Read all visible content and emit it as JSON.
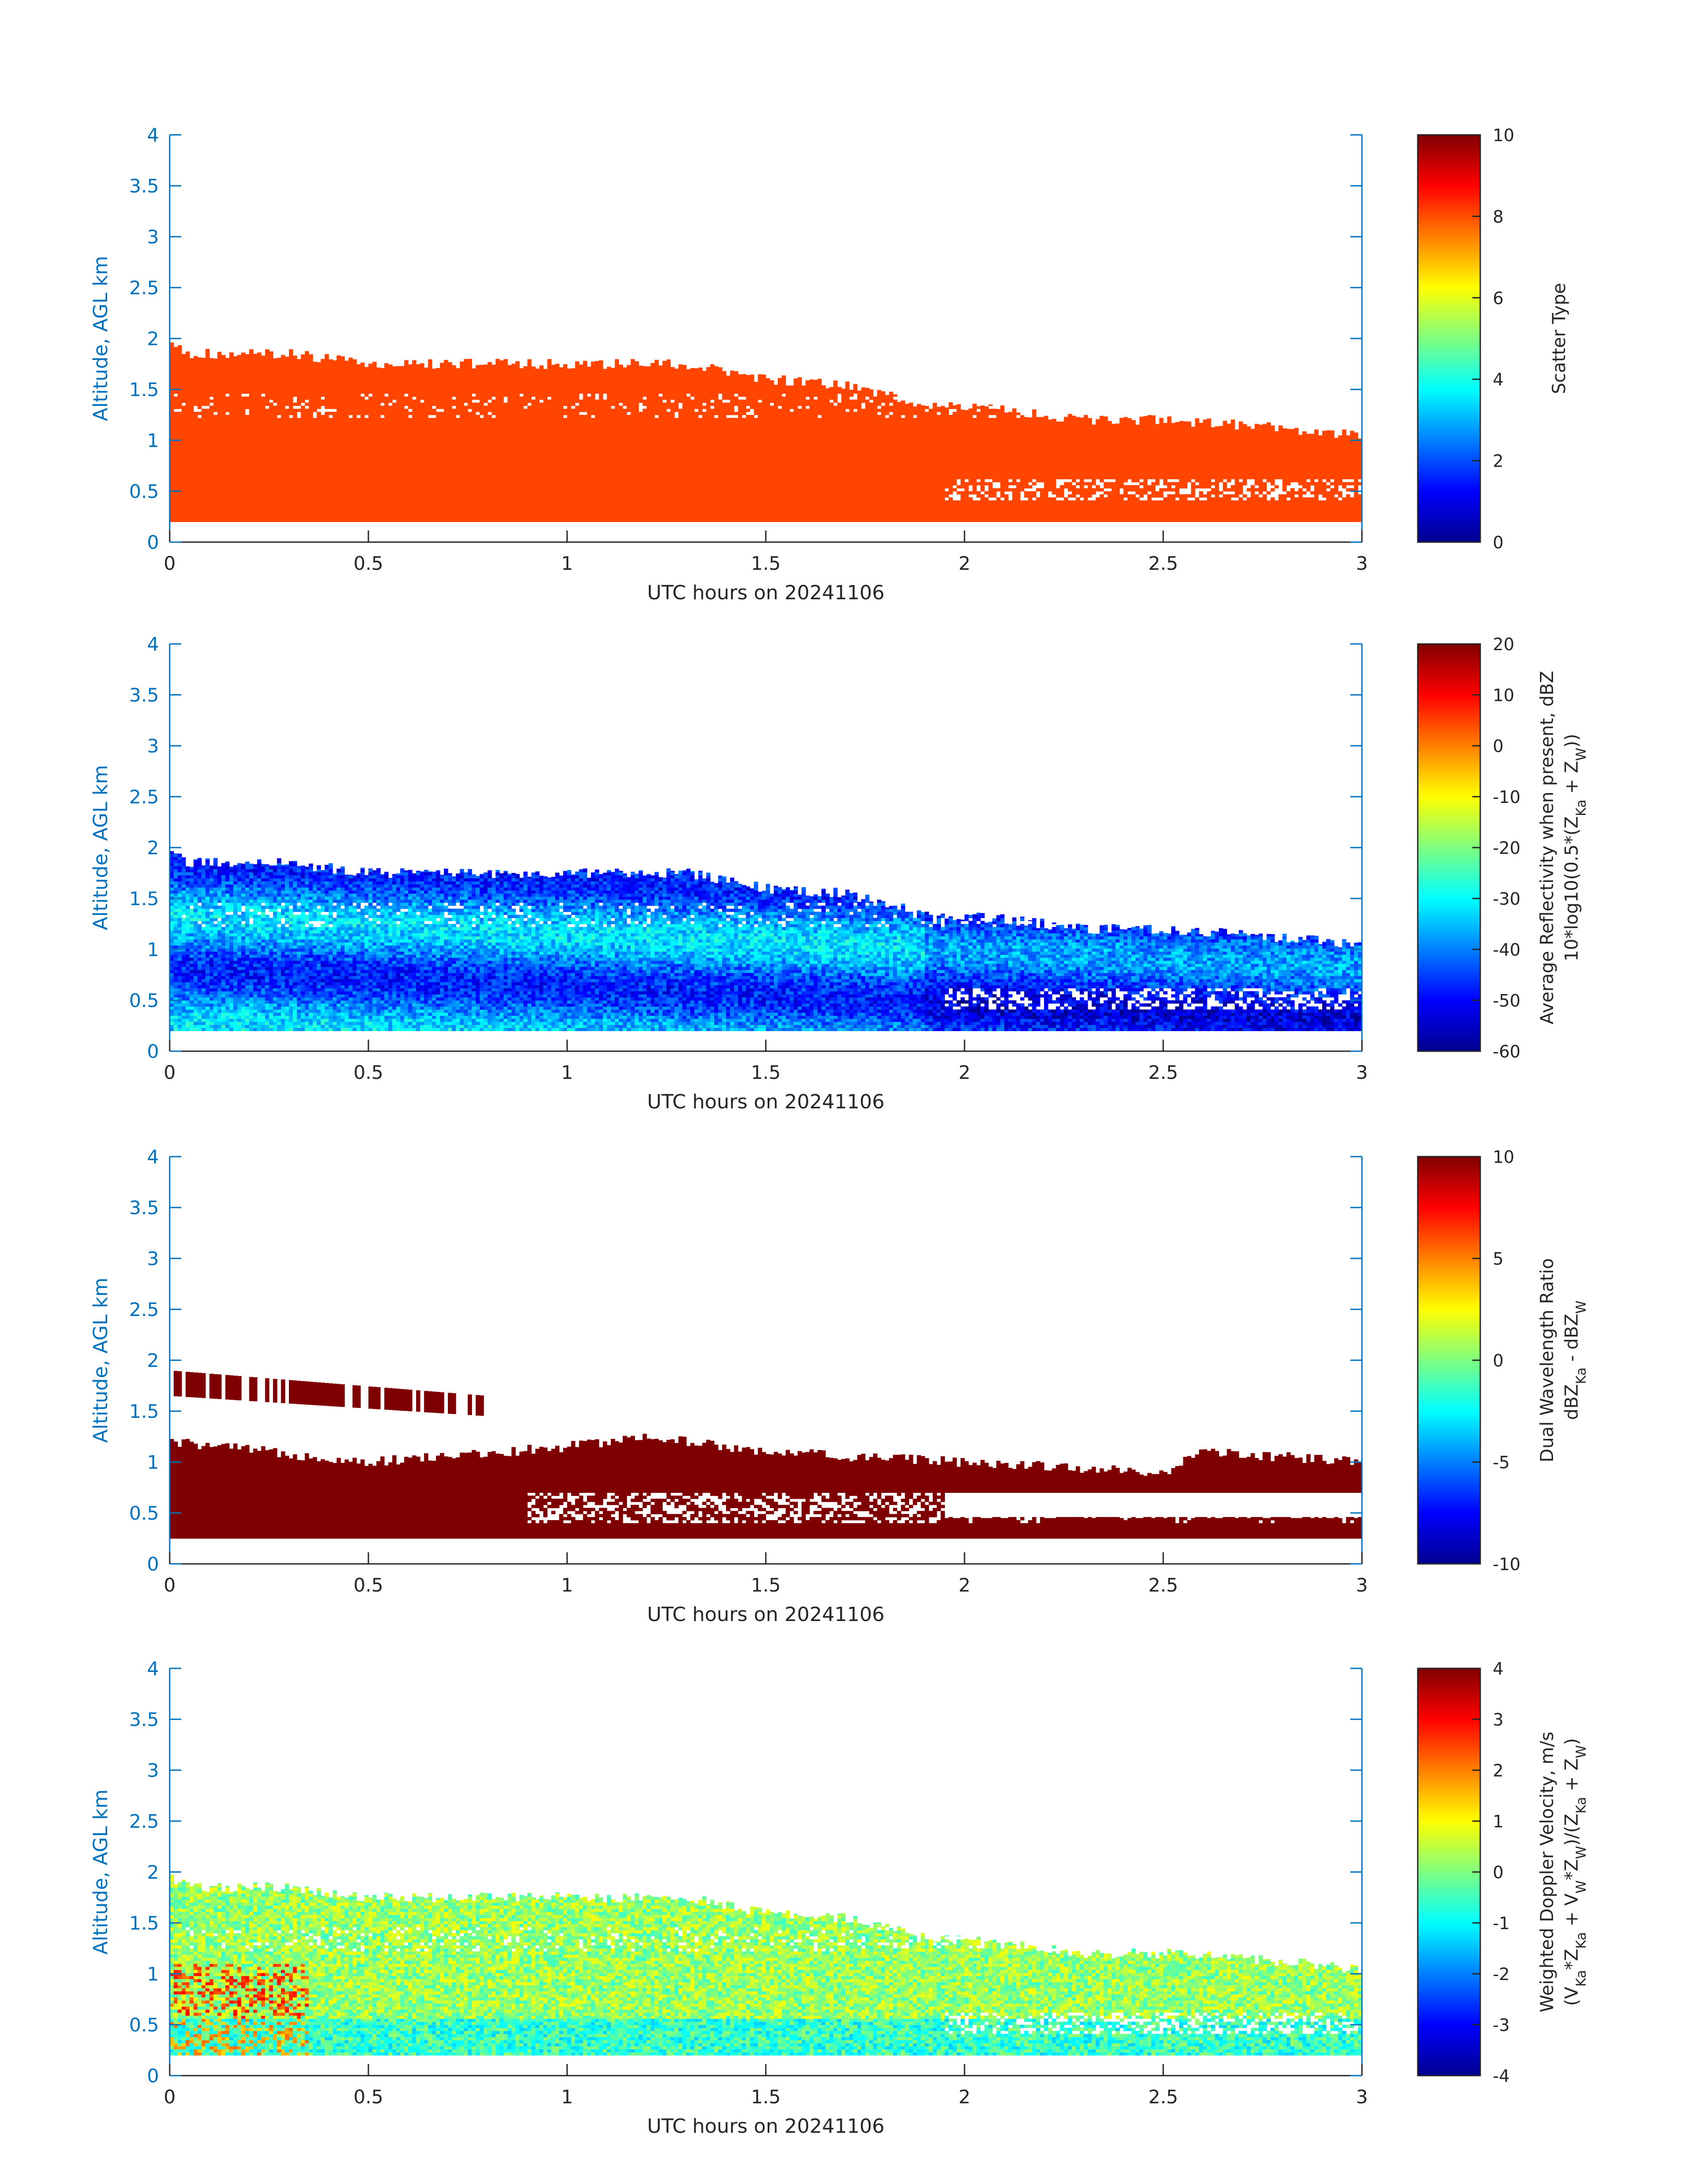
{
  "colors": {
    "axis_blue": "#0072BD",
    "text_dark": "#262626",
    "scatter_type_fill": "#FF4500",
    "dwr_fill": "#7F0000"
  },
  "chart_data": [
    {
      "type": "heatmap",
      "xlabel": "UTC hours on 20241106",
      "ylabel": "Altitude, AGL km",
      "xlim": [
        0,
        3
      ],
      "ylim": [
        0,
        4
      ],
      "x_ticks": [
        "0",
        "0.5",
        "1",
        "1.5",
        "2",
        "2.5",
        "3"
      ],
      "y_ticks": [
        "0",
        "0.5",
        "1",
        "1.5",
        "2",
        "2.5",
        "3",
        "3.5",
        "4"
      ],
      "colorbar": {
        "label_lines": [
          "Scatter Type"
        ],
        "ticks": [
          "0",
          "2",
          "4",
          "6",
          "8",
          "10"
        ],
        "range": [
          0,
          10
        ],
        "colormap": "jet"
      },
      "field": "scatter_type",
      "dominant_value": 9,
      "cloud_base_km": 0.2,
      "cloud_top_km": {
        "x": [
          0,
          0.05,
          0.3,
          0.5,
          0.9,
          1.3,
          1.5,
          1.7,
          1.9,
          2.1,
          2.3,
          2.5,
          2.7,
          3.0
        ],
        "y": [
          1.95,
          1.85,
          1.85,
          1.75,
          1.75,
          1.75,
          1.6,
          1.55,
          1.35,
          1.3,
          1.2,
          1.2,
          1.15,
          1.05
        ]
      }
    },
    {
      "type": "heatmap",
      "xlabel": "UTC hours on 20241106",
      "ylabel": "Altitude, AGL km",
      "xlim": [
        0,
        3
      ],
      "ylim": [
        0,
        4
      ],
      "x_ticks": [
        "0",
        "0.5",
        "1",
        "1.5",
        "2",
        "2.5",
        "3"
      ],
      "y_ticks": [
        "0",
        "0.5",
        "1",
        "1.5",
        "2",
        "2.5",
        "3",
        "3.5",
        "4"
      ],
      "colorbar": {
        "label_lines": [
          "Average Reflectivity when present, dBZ",
          "10*log10(0.5*(Z<Ka> + Z<W>))"
        ],
        "ticks": [
          "-60",
          "-50",
          "-40",
          "-30",
          "-20",
          "-10",
          "0",
          "10",
          "20"
        ],
        "range": [
          -60,
          20
        ],
        "colormap": "jet"
      },
      "field": "avg_reflectivity_dbz",
      "typical_range_dbz": [
        -50,
        -30
      ],
      "cloud_base_km": 0.2,
      "cloud_top_km": {
        "x": [
          0,
          0.05,
          0.3,
          0.5,
          0.9,
          1.3,
          1.5,
          1.7,
          1.9,
          2.1,
          2.3,
          2.5,
          2.7,
          3.0
        ],
        "y": [
          1.95,
          1.85,
          1.85,
          1.75,
          1.75,
          1.75,
          1.6,
          1.55,
          1.35,
          1.3,
          1.2,
          1.2,
          1.15,
          1.05
        ]
      }
    },
    {
      "type": "heatmap",
      "xlabel": "UTC hours on 20241106",
      "ylabel": "Altitude, AGL km",
      "xlim": [
        0,
        3
      ],
      "ylim": [
        0,
        4
      ],
      "x_ticks": [
        "0",
        "0.5",
        "1",
        "1.5",
        "2",
        "2.5",
        "3"
      ],
      "y_ticks": [
        "0",
        "0.5",
        "1",
        "1.5",
        "2",
        "2.5",
        "3",
        "3.5",
        "4"
      ],
      "colorbar": {
        "label_lines": [
          "Dual Wavelength Ratio",
          "dBZ<Ka> - dBZ<W>"
        ],
        "ticks": [
          "-10",
          "-5",
          "0",
          "5",
          "10"
        ],
        "range": [
          -10,
          10
        ],
        "colormap": "jet"
      },
      "field": "dual_wavelength_ratio_db",
      "dominant_value": 10,
      "cloud_base_km": 0.25,
      "layer_top_km": {
        "x": [
          0,
          0.5,
          1.0,
          1.2,
          1.5,
          2.0,
          2.5,
          2.6,
          3.0
        ],
        "y": [
          1.2,
          1.0,
          1.15,
          1.25,
          1.1,
          1.0,
          0.9,
          1.1,
          1.0
        ]
      },
      "upper_layer_km": {
        "x": [
          0,
          0.8
        ],
        "y": [
          1.4,
          1.9
        ]
      }
    },
    {
      "type": "heatmap",
      "xlabel": "UTC hours on 20241106",
      "ylabel": "Altitude, AGL km",
      "xlim": [
        0,
        3
      ],
      "ylim": [
        0,
        4
      ],
      "x_ticks": [
        "0",
        "0.5",
        "1",
        "1.5",
        "2",
        "2.5",
        "3"
      ],
      "y_ticks": [
        "0",
        "0.5",
        "1",
        "1.5",
        "2",
        "2.5",
        "3",
        "3.5",
        "4"
      ],
      "colorbar": {
        "label_lines": [
          "Weighted Doppler Velocity, m/s",
          "(V<Ka>*Z<Ka> + V<W>*Z<W>)/(Z<Ka> + Z<W>)"
        ],
        "ticks": [
          "-4",
          "-3",
          "-2",
          "-1",
          "0",
          "1",
          "2",
          "3",
          "4"
        ],
        "range": [
          -4,
          4
        ],
        "colormap": "jet"
      },
      "field": "weighted_doppler_velocity_ms",
      "typical_range_ms": [
        -1,
        1
      ],
      "cloud_base_km": 0.2,
      "cloud_top_km": {
        "x": [
          0,
          0.05,
          0.3,
          0.5,
          0.9,
          1.3,
          1.5,
          1.7,
          1.9,
          2.1,
          2.3,
          2.5,
          2.7,
          3.0
        ],
        "y": [
          1.95,
          1.85,
          1.85,
          1.75,
          1.75,
          1.75,
          1.6,
          1.55,
          1.35,
          1.3,
          1.2,
          1.2,
          1.15,
          1.05
        ]
      }
    }
  ]
}
